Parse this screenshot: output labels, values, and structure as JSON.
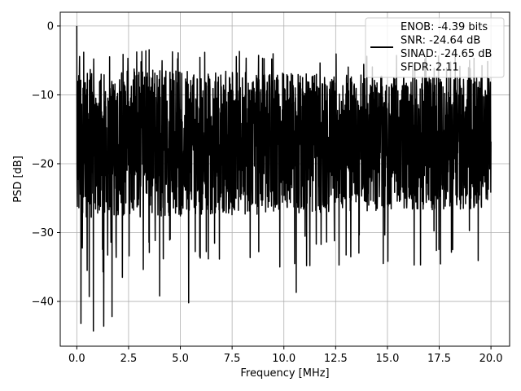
{
  "chart_data": {
    "type": "line",
    "xlabel": "Frequency [MHz]",
    "ylabel": "PSD [dB]",
    "xlim": [
      -0.8,
      20.9
    ],
    "ylim": [
      -46.5,
      2.0
    ],
    "xticks": [
      0.0,
      2.5,
      5.0,
      7.5,
      10.0,
      12.5,
      15.0,
      17.5,
      20.0
    ],
    "xtick_labels": [
      "0.0",
      "2.5",
      "5.0",
      "7.5",
      "10.0",
      "12.5",
      "15.0",
      "17.5",
      "20.0"
    ],
    "yticks": [
      0,
      -10,
      -20,
      -30,
      -40
    ],
    "ytick_labels": [
      "0",
      "−10",
      "−20",
      "−30",
      "−40"
    ],
    "grid": true,
    "legend_position": "top-right",
    "series": [
      {
        "color": "#000000",
        "x_range": [
          0.0,
          20.0
        ],
        "baseline_level_db": -16.5,
        "upper_envelope_db": -7.5,
        "lower_envelope_db": -26.5,
        "peak": {
          "x": 0.0,
          "y": 0.0
        },
        "deep_nulls": [
          {
            "x": 0.2,
            "y": -43.2
          },
          {
            "x": 0.5,
            "y": -35.5
          },
          {
            "x": 0.6,
            "y": -39.3
          },
          {
            "x": 0.8,
            "y": -44.3
          },
          {
            "x": 1.3,
            "y": -43.6
          },
          {
            "x": 1.7,
            "y": -42.2
          },
          {
            "x": 1.9,
            "y": -33.6
          },
          {
            "x": 2.2,
            "y": -36.5
          },
          {
            "x": 4.0,
            "y": -39.2
          },
          {
            "x": 5.4,
            "y": -40.2
          },
          {
            "x": 9.8,
            "y": -35.0
          },
          {
            "x": 10.6,
            "y": -38.7
          },
          {
            "x": 11.1,
            "y": -34.8
          },
          {
            "x": 14.8,
            "y": -34.5
          },
          {
            "x": 16.6,
            "y": -34.7
          }
        ]
      }
    ]
  },
  "legend": {
    "lines": [
      "ENOB: -4.39 bits",
      "SNR: -24.64 dB",
      "SINAD: -24.65 dB",
      "SFDR: 2.11"
    ]
  }
}
